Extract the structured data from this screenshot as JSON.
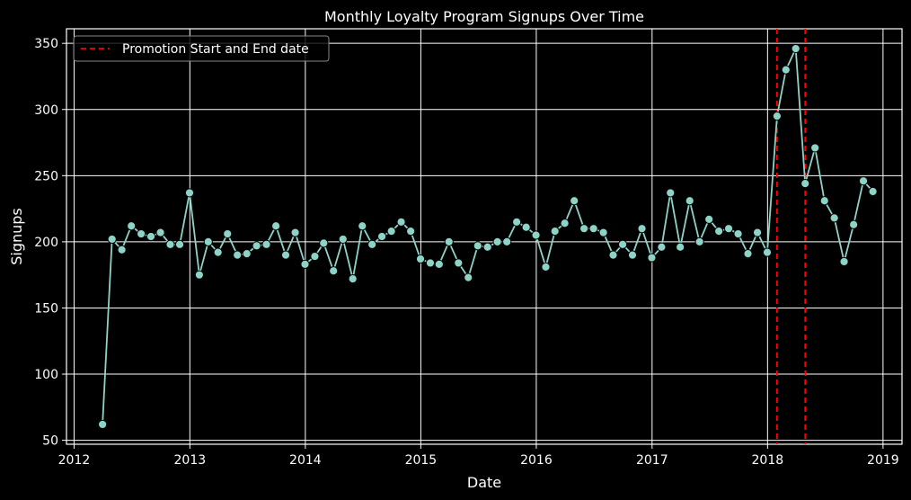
{
  "chart_data": {
    "type": "line",
    "title": "Monthly Loyalty Program Signups Over Time",
    "xlabel": "Date",
    "ylabel": "Signups",
    "x_ticks": [
      "2012",
      "2013",
      "2014",
      "2015",
      "2016",
      "2017",
      "2018",
      "2019"
    ],
    "y_ticks": [
      50,
      100,
      150,
      200,
      250,
      300,
      350
    ],
    "xlim": [
      "2011-12-08",
      "2019-03-02"
    ],
    "ylim": [
      47,
      361
    ],
    "grid": true,
    "background": "#000000",
    "line_color": "#8dd3c7",
    "legend": {
      "placement": "top-left",
      "entries": [
        {
          "label": "Promotion Start and End date",
          "color": "#ff0000",
          "style": "dashed"
        }
      ]
    },
    "promotion_lines": [
      "2018-01-31",
      "2018-04-30"
    ],
    "series": [
      {
        "x": [
          "2012-03-31",
          "2012-04-30",
          "2012-05-31",
          "2012-06-30",
          "2012-07-31",
          "2012-08-31",
          "2012-09-30",
          "2012-10-31",
          "2012-11-30",
          "2012-12-31",
          "2013-01-31",
          "2013-02-28",
          "2013-03-31",
          "2013-04-30",
          "2013-05-31",
          "2013-06-30",
          "2013-07-31",
          "2013-08-31",
          "2013-09-30",
          "2013-10-31",
          "2013-11-30",
          "2013-12-31",
          "2014-01-31",
          "2014-02-28",
          "2014-03-31",
          "2014-04-30",
          "2014-05-31",
          "2014-06-30",
          "2014-07-31",
          "2014-08-31",
          "2014-09-30",
          "2014-10-31",
          "2014-11-30",
          "2014-12-31",
          "2015-01-31",
          "2015-02-28",
          "2015-03-31",
          "2015-04-30",
          "2015-05-31",
          "2015-06-30",
          "2015-07-31",
          "2015-08-31",
          "2015-09-30",
          "2015-10-31",
          "2015-11-30",
          "2015-12-31",
          "2016-01-31",
          "2016-02-29",
          "2016-03-31",
          "2016-04-30",
          "2016-05-31",
          "2016-06-30",
          "2016-07-31",
          "2016-08-31",
          "2016-09-30",
          "2016-10-31",
          "2016-11-30",
          "2016-12-31",
          "2017-01-31",
          "2017-02-28",
          "2017-03-31",
          "2017-04-30",
          "2017-05-31",
          "2017-06-30",
          "2017-07-31",
          "2017-08-31",
          "2017-09-30",
          "2017-10-31",
          "2017-11-30",
          "2017-12-31",
          "2018-01-31",
          "2018-02-28",
          "2018-03-31",
          "2018-04-30",
          "2018-05-31",
          "2018-06-30",
          "2018-07-31",
          "2018-08-31",
          "2018-09-30",
          "2018-10-31",
          "2018-11-30"
        ],
        "y": [
          62,
          202,
          194,
          212,
          206,
          204,
          207,
          198,
          198,
          237,
          175,
          200,
          192,
          206,
          190,
          191,
          197,
          198,
          212,
          190,
          207,
          183,
          189,
          199,
          178,
          202,
          172,
          212,
          198,
          204,
          208,
          215,
          208,
          187,
          184,
          183,
          200,
          184,
          173,
          197,
          196,
          200,
          200,
          215,
          211,
          205,
          181,
          208,
          214,
          231,
          210,
          210,
          207,
          190,
          198,
          190,
          210,
          188,
          196,
          237,
          196,
          231,
          200,
          217,
          208,
          210,
          206,
          191,
          207,
          192,
          295,
          330,
          346,
          244,
          271,
          231,
          218,
          185,
          213,
          246,
          238
        ]
      }
    ]
  }
}
